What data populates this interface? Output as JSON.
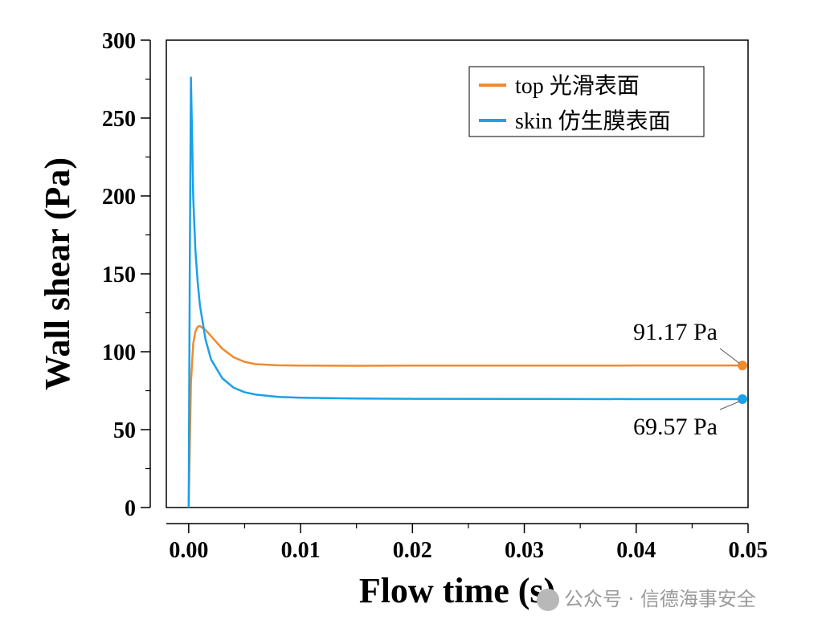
{
  "chart_data": {
    "type": "line",
    "xlabel": "Flow time (s)",
    "ylabel": "Wall shear (Pa)",
    "xlim": [
      -0.002,
      0.05
    ],
    "ylim": [
      0,
      300
    ],
    "xticks": [
      0.0,
      0.01,
      0.02,
      0.03,
      0.04,
      0.05
    ],
    "xtick_labels": [
      "0.00",
      "0.01",
      "0.02",
      "0.03",
      "0.04",
      "0.05"
    ],
    "yticks": [
      0,
      50,
      100,
      150,
      200,
      250,
      300
    ],
    "ytick_labels": [
      "0",
      "50",
      "100",
      "150",
      "200",
      "250",
      "300"
    ],
    "grid": false,
    "legend_position": "top-right",
    "series": [
      {
        "name": "top 光滑表面",
        "color": "#F08A2E",
        "x": [
          0.0,
          0.0002,
          0.0004,
          0.0006,
          0.0008,
          0.001,
          0.0015,
          0.002,
          0.003,
          0.004,
          0.005,
          0.006,
          0.008,
          0.01,
          0.015,
          0.02,
          0.03,
          0.04,
          0.0495
        ],
        "y": [
          0.0,
          80.0,
          105.0,
          113.0,
          116.0,
          116.5,
          114.0,
          110.0,
          102.0,
          96.5,
          93.5,
          92.0,
          91.3,
          91.1,
          91.0,
          91.1,
          91.1,
          91.15,
          91.17
        ]
      },
      {
        "name": "skin 仿生膜表面",
        "color": "#1BA1E8",
        "x": [
          0.0,
          0.0001,
          0.0002,
          0.0003,
          0.0004,
          0.0006,
          0.0008,
          0.001,
          0.0015,
          0.002,
          0.003,
          0.004,
          0.005,
          0.006,
          0.008,
          0.01,
          0.015,
          0.02,
          0.03,
          0.04,
          0.0495
        ],
        "y": [
          0.0,
          160.0,
          276.0,
          240.0,
          200.0,
          165.0,
          145.0,
          130.0,
          108.0,
          95.0,
          83.0,
          77.0,
          74.0,
          72.5,
          71.0,
          70.5,
          70.0,
          69.8,
          69.7,
          69.6,
          69.57
        ]
      }
    ],
    "annotations": [
      {
        "text": "91.17 Pa",
        "x": 0.0495,
        "y": 91.17,
        "series": 0
      },
      {
        "text": "69.57 Pa",
        "x": 0.0495,
        "y": 69.57,
        "series": 1
      }
    ]
  },
  "watermark": {
    "text": "公众号 · 信德海事安全",
    "icon": "wechat-icon"
  }
}
